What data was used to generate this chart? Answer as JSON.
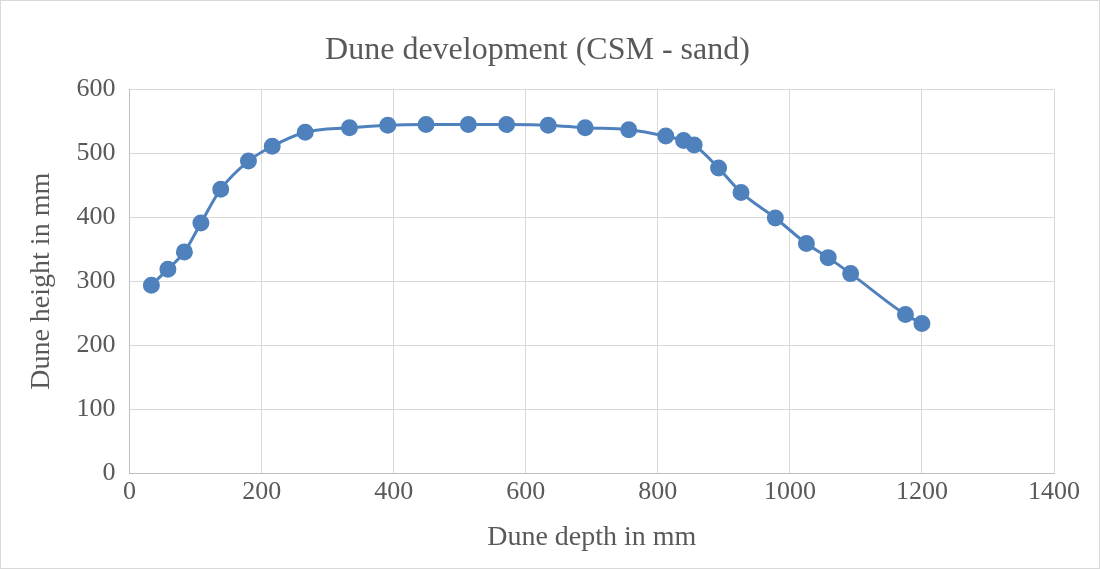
{
  "chart_data": {
    "type": "line",
    "title": "Dune development (CSM - sand)",
    "xlabel": "Dune depth in mm",
    "ylabel": "Dune height in mm",
    "x": [
      33,
      58,
      83,
      108,
      138,
      180,
      216,
      266,
      333,
      391,
      449,
      513,
      571,
      634,
      690,
      756,
      812,
      839,
      855,
      892,
      926,
      978,
      1025,
      1058,
      1092,
      1175,
      1200
    ],
    "series": [
      {
        "color": "#4f81bd",
        "values": [
          294,
          319,
          346,
          391,
          444,
          488,
          511,
          533,
          540,
          544,
          545,
          545,
          545,
          544,
          540,
          537,
          527,
          520,
          513,
          477,
          439,
          399,
          359,
          337,
          312,
          248,
          234
        ]
      }
    ],
    "xlim": [
      0,
      1400
    ],
    "xticks": [
      0,
      200,
      400,
      600,
      800,
      1000,
      1200,
      1400
    ],
    "ylim": [
      0,
      600
    ],
    "yticks": [
      0,
      100,
      200,
      300,
      400,
      500,
      600
    ],
    "grid": true,
    "legend": false,
    "marker": "circle",
    "line_style": "solid"
  }
}
